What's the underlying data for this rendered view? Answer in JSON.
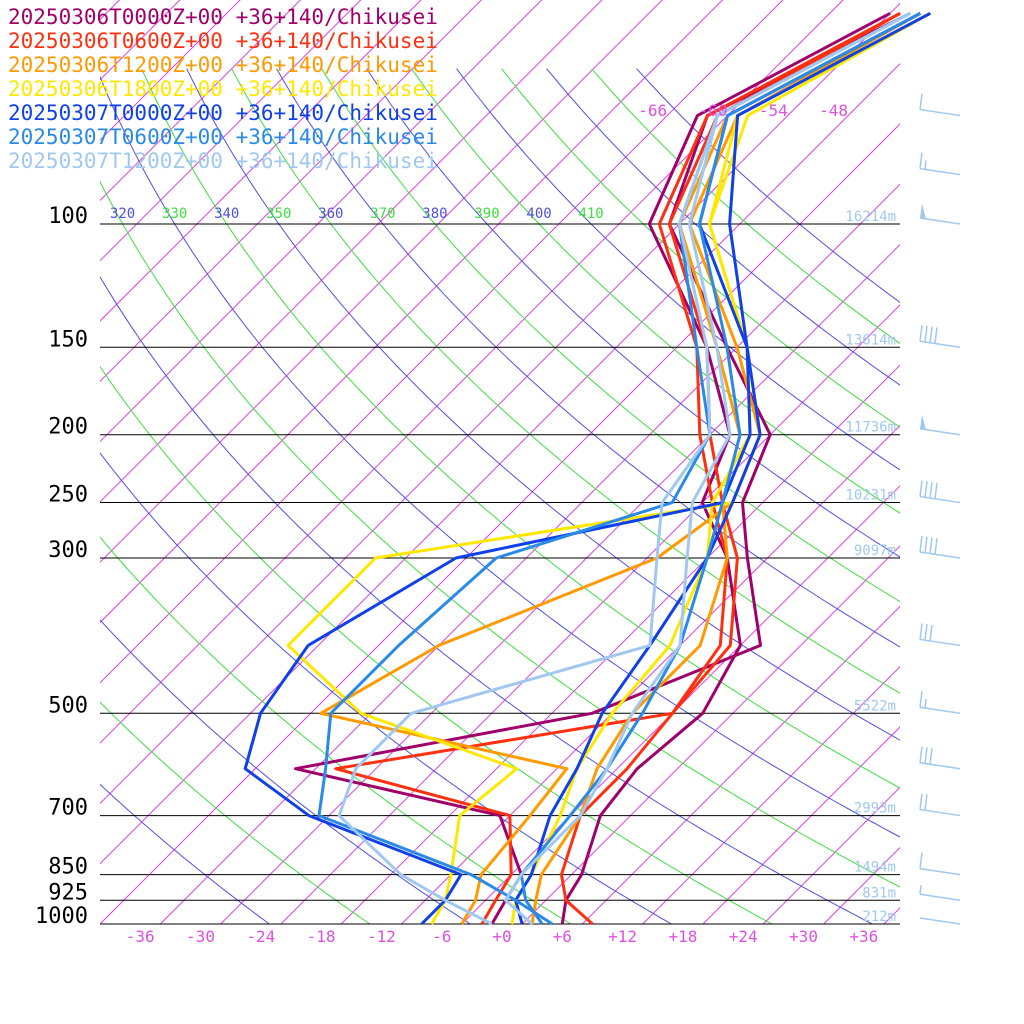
{
  "chart_data": {
    "type": "line",
    "title": "",
    "xlabel": "",
    "ylabel": "",
    "pressure_axis": {
      "ticks": [
        100,
        150,
        200,
        250,
        300,
        500,
        700,
        850,
        925,
        1000
      ],
      "labels": [
        "100",
        "150",
        "200",
        "250",
        "300",
        "500",
        "700",
        "850",
        "925",
        "1000"
      ],
      "range": [
        100,
        1000
      ],
      "scale": "log"
    },
    "temperature_axis": {
      "ticks": [
        -36,
        -30,
        -24,
        -18,
        -12,
        -6,
        0,
        6,
        12,
        18,
        24,
        30,
        36
      ],
      "labels": [
        "-36",
        "-30",
        "-24",
        "-18",
        "-12",
        "-6",
        "+0",
        "+6",
        "+12",
        "+18",
        "+24",
        "+30",
        "+36"
      ]
    },
    "upper_temp_labels": [
      {
        "t": -66,
        "label": "-66"
      },
      {
        "t": -60,
        "label": "-60"
      },
      {
        "t": -54,
        "label": "-54"
      },
      {
        "t": -48,
        "label": "-48"
      }
    ],
    "theta_labels": [
      "320",
      "330",
      "340",
      "350",
      "360",
      "370",
      "380",
      "390",
      "400",
      "410"
    ],
    "theta_label_colors": [
      "#5050e0",
      "#40dd40"
    ],
    "height_labels": [
      {
        "p": 100,
        "label": "16214m"
      },
      {
        "p": 150,
        "label": "13614m"
      },
      {
        "p": 200,
        "label": "11736m"
      },
      {
        "p": 250,
        "label": "10231m"
      },
      {
        "p": 300,
        "label": "9097m"
      },
      {
        "p": 500,
        "label": "5522m"
      },
      {
        "p": 700,
        "label": "2993m"
      },
      {
        "p": 850,
        "label": "1494m"
      },
      {
        "p": 925,
        "label": "831m"
      },
      {
        "p": 1000,
        "label": "212m"
      }
    ],
    "series": [
      {
        "name": "20250306T0000Z+00 +36+140/Chikusei",
        "color": "#a0006a",
        "temperature": [
          [
            1000,
            6
          ],
          [
            925,
            4
          ],
          [
            850,
            3
          ],
          [
            700,
            -1
          ],
          [
            600,
            -2
          ],
          [
            500,
            -1
          ],
          [
            400,
            -4
          ],
          [
            300,
            -14
          ],
          [
            250,
            -22
          ],
          [
            200,
            -26
          ],
          [
            150,
            -37
          ],
          [
            100,
            -55
          ],
          [
            70,
            -61
          ],
          [
            50,
            -52
          ]
        ],
        "dewpoint": [
          [
            1000,
            -1
          ],
          [
            925,
            -2
          ],
          [
            850,
            -3
          ],
          [
            700,
            -11
          ],
          [
            600,
            -36
          ],
          [
            500,
            -12
          ],
          [
            400,
            -2
          ],
          [
            300,
            -12
          ],
          [
            250,
            -18
          ],
          [
            200,
            -22
          ],
          [
            150,
            -35
          ],
          [
            100,
            -53
          ],
          [
            70,
            -60
          ],
          [
            50,
            -50
          ]
        ]
      },
      {
        "name": "20250306T0600Z+00 +36+140/Chikusei",
        "color": "#ff3010",
        "temperature": [
          [
            1000,
            9
          ],
          [
            925,
            4
          ],
          [
            850,
            1
          ],
          [
            700,
            -3
          ],
          [
            600,
            -3
          ],
          [
            500,
            -4
          ],
          [
            400,
            -6
          ],
          [
            300,
            -14
          ],
          [
            250,
            -21
          ],
          [
            200,
            -29
          ],
          [
            150,
            -38
          ],
          [
            100,
            -54
          ],
          [
            70,
            -60
          ],
          [
            50,
            -51
          ]
        ],
        "dewpoint": [
          [
            1000,
            -2
          ],
          [
            925,
            -3
          ],
          [
            850,
            -4
          ],
          [
            700,
            -10
          ],
          [
            600,
            -32
          ],
          [
            500,
            -4
          ],
          [
            400,
            -5
          ],
          [
            300,
            -13
          ],
          [
            250,
            -20
          ],
          [
            200,
            -28
          ],
          [
            150,
            -37
          ],
          [
            100,
            -53
          ],
          [
            70,
            -59
          ],
          [
            50,
            -51
          ]
        ]
      },
      {
        "name": "20250306T1200Z+00 +36+140/Chikusei",
        "color": "#ff9a00",
        "temperature": [
          [
            1000,
            3
          ],
          [
            925,
            1
          ],
          [
            850,
            -1
          ],
          [
            700,
            -3
          ],
          [
            600,
            -6
          ],
          [
            500,
            -8
          ],
          [
            400,
            -8
          ],
          [
            300,
            -14
          ],
          [
            250,
            -20
          ],
          [
            200,
            -25
          ],
          [
            150,
            -36
          ],
          [
            100,
            -52
          ],
          [
            70,
            -58
          ],
          [
            50,
            -49
          ]
        ],
        "dewpoint": [
          [
            1000,
            -4
          ],
          [
            925,
            -5
          ],
          [
            850,
            -7
          ],
          [
            700,
            -8
          ],
          [
            600,
            -9
          ],
          [
            500,
            -39
          ],
          [
            400,
            -34
          ],
          [
            300,
            -21
          ],
          [
            250,
            -19
          ],
          [
            200,
            -23
          ],
          [
            150,
            -34
          ],
          [
            100,
            -51
          ],
          [
            70,
            -57
          ],
          [
            50,
            -49
          ]
        ]
      },
      {
        "name": "20250306T1800Z+00 +36+140/Chikusei",
        "color": "#ffe800",
        "temperature": [
          [
            1000,
            1
          ],
          [
            925,
            -1
          ],
          [
            850,
            -2
          ],
          [
            700,
            -5
          ],
          [
            600,
            -8
          ],
          [
            500,
            -10
          ],
          [
            400,
            -11
          ],
          [
            300,
            -16
          ],
          [
            250,
            -21
          ],
          [
            200,
            -24
          ],
          [
            150,
            -33
          ],
          [
            100,
            -49
          ],
          [
            70,
            -57
          ],
          [
            50,
            -48
          ]
        ],
        "dewpoint": [
          [
            1000,
            -7
          ],
          [
            925,
            -8
          ],
          [
            850,
            -10
          ],
          [
            700,
            -15
          ],
          [
            600,
            -14
          ],
          [
            500,
            -35
          ],
          [
            400,
            -49
          ],
          [
            300,
            -49
          ],
          [
            250,
            -19
          ],
          [
            200,
            -23
          ],
          [
            150,
            -33
          ],
          [
            100,
            -49
          ],
          [
            70,
            -56
          ],
          [
            50,
            -48
          ]
        ]
      },
      {
        "name": "20250307T0000Z+00 +36+140/Chikusei",
        "color": "#1040e8",
        "temperature": [
          [
            1000,
            2
          ],
          [
            925,
            -1
          ],
          [
            850,
            -2
          ],
          [
            700,
            -6
          ],
          [
            600,
            -8
          ],
          [
            500,
            -11
          ],
          [
            400,
            -13
          ],
          [
            300,
            -16
          ],
          [
            250,
            -19
          ],
          [
            200,
            -23
          ],
          [
            150,
            -33
          ],
          [
            100,
            -47
          ],
          [
            70,
            -57
          ],
          [
            50,
            -48
          ]
        ],
        "dewpoint": [
          [
            1000,
            -8
          ],
          [
            925,
            -8
          ],
          [
            850,
            -9
          ],
          [
            700,
            -30
          ],
          [
            600,
            -41
          ],
          [
            500,
            -45
          ],
          [
            400,
            -47
          ],
          [
            300,
            -41
          ],
          [
            250,
            -20
          ],
          [
            200,
            -24
          ],
          [
            150,
            -33
          ],
          [
            100,
            -50
          ],
          [
            70,
            -58
          ],
          [
            50,
            -49
          ]
        ]
      },
      {
        "name": "20250307T0600Z+00 +36+140/Chikusei",
        "color": "#2a8ae8",
        "temperature": [
          [
            1000,
            4
          ],
          [
            925,
            0
          ],
          [
            850,
            -3
          ],
          [
            700,
            -4
          ],
          [
            600,
            -5
          ],
          [
            500,
            -7
          ],
          [
            400,
            -10
          ],
          [
            300,
            -16
          ],
          [
            250,
            -20
          ],
          [
            200,
            -25
          ],
          [
            150,
            -35
          ],
          [
            100,
            -50
          ],
          [
            70,
            -58
          ],
          [
            50,
            -49
          ]
        ],
        "dewpoint": [
          [
            1000,
            5
          ],
          [
            925,
            -1
          ],
          [
            850,
            -8
          ],
          [
            700,
            -29
          ],
          [
            600,
            -33
          ],
          [
            500,
            -38
          ],
          [
            400,
            -38
          ],
          [
            300,
            -37
          ],
          [
            250,
            -25
          ],
          [
            200,
            -28
          ],
          [
            150,
            -38
          ],
          [
            100,
            -52
          ],
          [
            70,
            -59
          ],
          [
            50,
            -50
          ]
        ]
      },
      {
        "name": "20250307T1200Z+00 +36+140/Chikusei",
        "color": "#a0c8f0",
        "temperature": [
          [
            1000,
            3
          ],
          [
            925,
            -2
          ],
          [
            850,
            -3
          ],
          [
            700,
            -3
          ],
          [
            600,
            -5
          ],
          [
            500,
            -8
          ],
          [
            400,
            -10
          ],
          [
            300,
            -18
          ],
          [
            250,
            -23
          ],
          [
            200,
            -26
          ],
          [
            150,
            -36
          ],
          [
            100,
            -51
          ],
          [
            70,
            -59
          ],
          [
            50,
            -50
          ]
        ],
        "dewpoint": [
          [
            1000,
            -1
          ],
          [
            925,
            -8
          ],
          [
            850,
            -15
          ],
          [
            700,
            -27
          ],
          [
            600,
            -30
          ],
          [
            500,
            -30
          ],
          [
            400,
            -13
          ],
          [
            300,
            -21
          ],
          [
            250,
            -26
          ],
          [
            200,
            -28
          ],
          [
            150,
            -37
          ],
          [
            100,
            -52
          ],
          [
            70,
            -59
          ],
          [
            50,
            -50
          ]
        ]
      }
    ],
    "wind_color": "#a0c8f0",
    "wind_barbs": [
      {
        "p": 70,
        "speed": 10
      },
      {
        "p": 85,
        "speed": 15
      },
      {
        "p": 100,
        "speed": 50
      },
      {
        "p": 150,
        "speed": 40
      },
      {
        "p": 200,
        "speed": 50
      },
      {
        "p": 250,
        "speed": 40
      },
      {
        "p": 300,
        "speed": 40
      },
      {
        "p": 400,
        "speed": 30
      },
      {
        "p": 500,
        "speed": 15
      },
      {
        "p": 600,
        "speed": 30
      },
      {
        "p": 700,
        "speed": 20
      },
      {
        "p": 850,
        "speed": 10
      },
      {
        "p": 925,
        "speed": 5
      },
      {
        "p": 1000,
        "speed": 0
      }
    ]
  }
}
